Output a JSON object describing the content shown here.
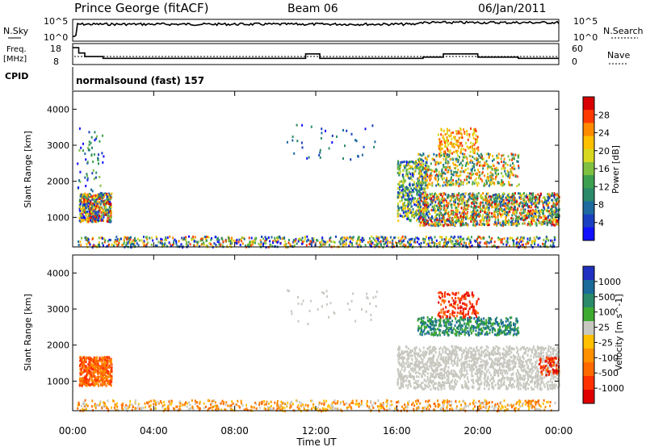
{
  "header": {
    "station": "Prince George (fitACF)",
    "beam": "Beam 06",
    "date": "06/Jan/2011"
  },
  "labels": {
    "nsky": "N.Sky",
    "nsearch": "N.Search",
    "freq_line1": "Freq.",
    "freq_line2": "[MHz]",
    "nave": "Nave",
    "cpid": "CPID",
    "cpid_value": "normalsound (fast) 157"
  },
  "noise_panel": {
    "left_ticks": [
      "10^5",
      "10^0"
    ],
    "right_ticks": [
      "10^5",
      "10^0"
    ]
  },
  "freq_panel": {
    "left_ticks": [
      "18",
      "8"
    ],
    "right_ticks": [
      "60",
      "0"
    ],
    "freq_series_mhz": [
      {
        "t": 0.0,
        "v": 17.5
      },
      {
        "t": 0.3,
        "v": 17.5
      },
      {
        "t": 0.3,
        "v": 14.5
      },
      {
        "t": 0.6,
        "v": 14.5
      },
      {
        "t": 0.6,
        "v": 12.5
      },
      {
        "t": 1.5,
        "v": 12.5
      },
      {
        "t": 1.5,
        "v": 11.5
      },
      {
        "t": 11.5,
        "v": 11.5
      },
      {
        "t": 11.5,
        "v": 14
      },
      {
        "t": 12.2,
        "v": 14
      },
      {
        "t": 12.2,
        "v": 11.5
      },
      {
        "t": 17.3,
        "v": 11.5
      },
      {
        "t": 17.3,
        "v": 12.2
      },
      {
        "t": 18.3,
        "v": 12.2
      },
      {
        "t": 18.3,
        "v": 14
      },
      {
        "t": 20.0,
        "v": 14
      },
      {
        "t": 20.0,
        "v": 12.2
      },
      {
        "t": 22.0,
        "v": 12.2
      },
      {
        "t": 22.0,
        "v": 11.5
      },
      {
        "t": 24.0,
        "v": 11.5
      }
    ]
  },
  "chart_data": [
    {
      "type": "heatmap",
      "title": "Power",
      "xlabel": "Time UT",
      "ylabel": "Slant Range [km]",
      "xlim": [
        0,
        24
      ],
      "ylim": [
        180,
        4500
      ],
      "x_tick_labels": [
        "00:00",
        "04:00",
        "08:00",
        "12:00",
        "16:00",
        "20:00",
        "00:00"
      ],
      "x_ticks": [
        0,
        4,
        8,
        12,
        16,
        20,
        24
      ],
      "y_ticks": [
        1000,
        2000,
        3000,
        4000
      ],
      "colorbar_label": "Power [dB]",
      "colorbar_ticks": [
        "28",
        "24",
        "20",
        "16",
        "12",
        "8",
        "4"
      ],
      "colorbar_colors": [
        "#d80000",
        "#ff3a00",
        "#ff8a00",
        "#ffc000",
        "#d8d820",
        "#7fc040",
        "#3ca050",
        "#2a8a6a",
        "#1f6aa0",
        "#1a3fc0",
        "#1010ff"
      ]
    },
    {
      "type": "heatmap",
      "title": "Velocity",
      "xlabel": "Time UT",
      "ylabel": "Slant Range [km]",
      "xlim": [
        0,
        24
      ],
      "ylim": [
        180,
        4500
      ],
      "y_ticks": [
        1000,
        2000,
        3000,
        4000
      ],
      "colorbar_label": "Velocity [m s^-1]",
      "colorbar_ticks": [
        "1000",
        "500",
        "100",
        "25",
        "-25",
        "-100",
        "-500",
        "-1000"
      ],
      "colorbar_colors": [
        "#2030c0",
        "#1a6a9a",
        "#2a8a6a",
        "#3faa30",
        "#c8c8c0",
        "#ffc000",
        "#ff9000",
        "#ff6a00",
        "#ff3000",
        "#e00000"
      ]
    }
  ],
  "footer": {
    "xlabel": "Time UT"
  }
}
